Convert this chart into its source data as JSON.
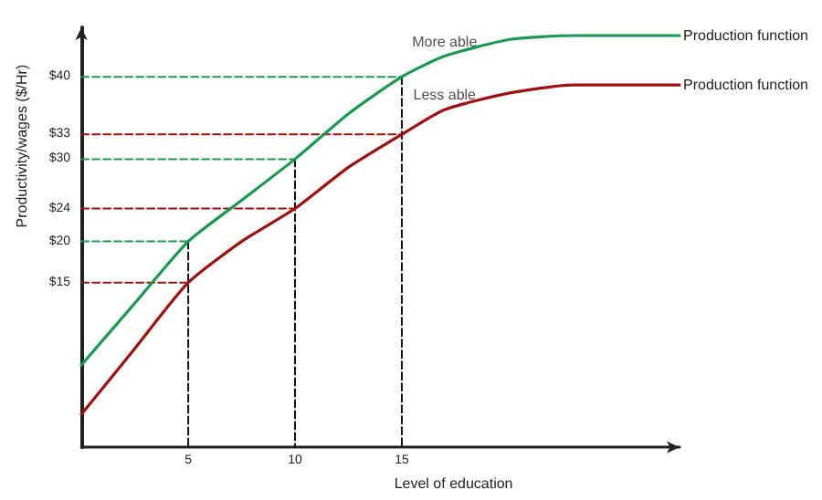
{
  "chart_data": {
    "type": "line",
    "xlabel": "Level of education",
    "ylabel": "Productivity/wages ($/Hr)",
    "xlim": [
      0,
      28
    ],
    "xticks": [
      5,
      10,
      15
    ],
    "ylim": [
      -5,
      46
    ],
    "yticks": [
      {
        "value": 15,
        "label": "$15"
      },
      {
        "value": 20,
        "label": "$20"
      },
      {
        "value": 24,
        "label": "$24"
      },
      {
        "value": 30,
        "label": "$30"
      },
      {
        "value": 33,
        "label": "$33"
      },
      {
        "value": 40,
        "label": "$40"
      }
    ],
    "grid": false,
    "legend": false,
    "marker": "none",
    "series": [
      {
        "name": "Production function",
        "color": "#1a9a50",
        "x": [
          0,
          2.5,
          5,
          7.5,
          10,
          12.5,
          15,
          17,
          20,
          23,
          28
        ],
        "values": [
          5,
          12.5,
          20,
          25,
          30,
          35.5,
          40,
          42.5,
          44.5,
          45,
          45
        ]
      },
      {
        "name": "Production function",
        "color": "#a01010",
        "x": [
          0,
          2.5,
          5,
          7.5,
          10,
          12.5,
          15,
          17,
          20,
          23,
          28
        ],
        "values": [
          -1,
          7,
          15,
          20,
          24,
          29,
          33,
          36,
          38,
          39,
          39
        ]
      },
      {
        "color": "#1a9a50",
        "line_style": "dashed",
        "x": [
          0,
          5
        ],
        "values": [
          20,
          20
        ]
      },
      {
        "color": "#1a9a50",
        "line_style": "dashed",
        "x": [
          0,
          10
        ],
        "values": [
          30,
          30
        ]
      },
      {
        "color": "#1a9a50",
        "line_style": "dashed",
        "x": [
          0,
          15
        ],
        "values": [
          40,
          40
        ]
      },
      {
        "color": "#a01010",
        "line_style": "dashed",
        "x": [
          0,
          5
        ],
        "values": [
          15,
          15
        ]
      },
      {
        "color": "#a01010",
        "line_style": "dashed",
        "x": [
          0,
          10
        ],
        "values": [
          24,
          24
        ]
      },
      {
        "color": "#a01010",
        "line_style": "dashed",
        "x": [
          0,
          15
        ],
        "values": [
          33,
          33
        ]
      },
      {
        "color": "#111111",
        "line_style": "dashed",
        "x": [
          5,
          5
        ],
        "values": [
          20,
          -5
        ]
      },
      {
        "color": "#111111",
        "line_style": "dashed",
        "x": [
          10,
          10
        ],
        "values": [
          30,
          -5
        ]
      },
      {
        "color": "#111111",
        "line_style": "dashed",
        "x": [
          15,
          15
        ],
        "values": [
          40,
          -5
        ]
      }
    ],
    "annotations": [
      {
        "text": "More able",
        "x": 17,
        "y": 42.5
      },
      {
        "text": "Less able",
        "x": 17,
        "y": 36
      }
    ]
  }
}
